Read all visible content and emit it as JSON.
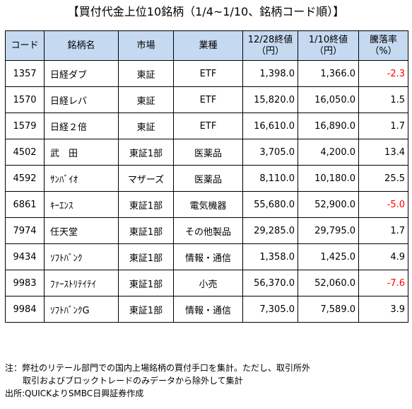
{
  "title": "【買付代金上位10銘柄（1/4~1/10、銘柄コード順）】",
  "headers": {
    "code": "コード",
    "name": "銘柄名",
    "market": "市場",
    "sector": "業種",
    "price_1228": "12/28終値",
    "price_1228_unit": "（円）",
    "price_0110": "1/10終値",
    "price_0110_unit": "（円）",
    "change": "騰落率",
    "change_unit": "（%）"
  },
  "rows": [
    {
      "code": "1357",
      "name": "日経ダブ",
      "market": "東証",
      "sector": "ETF",
      "p1": "1,398.0",
      "p2": "1,366.0",
      "chg": "-2.3",
      "neg": true
    },
    {
      "code": "1570",
      "name": "日経レバ",
      "market": "東証",
      "sector": "ETF",
      "p1": "15,820.0",
      "p2": "16,050.0",
      "chg": "1.5",
      "neg": false
    },
    {
      "code": "1579",
      "name": "日経２倍",
      "market": "東証",
      "sector": "ETF",
      "p1": "16,610.0",
      "p2": "16,890.0",
      "chg": "1.7",
      "neg": false
    },
    {
      "code": "4502",
      "name": "武　田",
      "market": "東証1部",
      "sector": "医薬品",
      "p1": "3,705.0",
      "p2": "4,200.0",
      "chg": "13.4",
      "neg": false
    },
    {
      "code": "4592",
      "name": "ｻﾝﾊﾞｲｵ",
      "market": "マザーズ",
      "sector": "医薬品",
      "p1": "8,110.0",
      "p2": "10,180.0",
      "chg": "25.5",
      "neg": false
    },
    {
      "code": "6861",
      "name": "ｷｰｴﾝｽ",
      "market": "東証1部",
      "sector": "電気機器",
      "p1": "55,680.0",
      "p2": "52,900.0",
      "chg": "-5.0",
      "neg": true
    },
    {
      "code": "7974",
      "name": "任天堂",
      "market": "東証1部",
      "sector": "その他製品",
      "p1": "29,285.0",
      "p2": "29,795.0",
      "chg": "1.7",
      "neg": false
    },
    {
      "code": "9434",
      "name": "ｿﾌﾄﾊﾞﾝｸ",
      "market": "東証1部",
      "sector": "情報・通信",
      "p1": "1,358.0",
      "p2": "1,425.0",
      "chg": "4.9",
      "neg": false
    },
    {
      "code": "9983",
      "name": "ﾌｧｰｽﾄﾘﾃｲﾃｲ",
      "market": "東証1部",
      "sector": "小売",
      "p1": "56,370.0",
      "p2": "52,060.0",
      "chg": "-7.6",
      "neg": true
    },
    {
      "code": "9984",
      "name": "ｿﾌﾄﾊﾞﾝｸG",
      "market": "東証1部",
      "sector": "情報・通信",
      "p1": "7,305.0",
      "p2": "7,589.0",
      "chg": "3.9",
      "neg": false
    }
  ],
  "colors": {
    "header_bg": "#c5d9f1",
    "negative": "#ff0000"
  },
  "notes": {
    "line1": "注：弊社のリテール部門での国内上場銘柄の買付手口を集計。ただし、取引所外",
    "line2": "取引およびブロックトレードのみデータから除外して集計",
    "source": "出所:QUICKよりSMBC日興証券作成"
  }
}
